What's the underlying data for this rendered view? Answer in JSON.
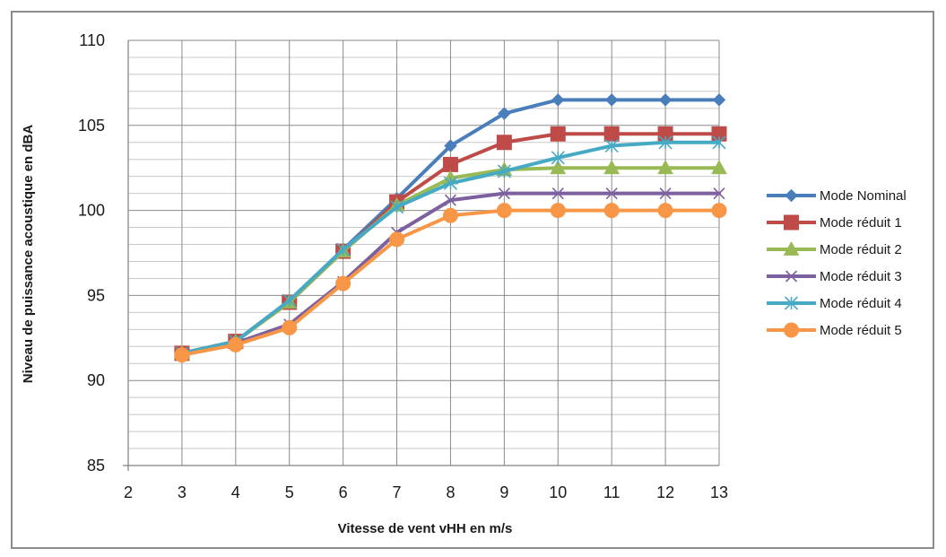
{
  "chart_data": {
    "type": "line",
    "title": "",
    "xlabel": "Vitesse de vent vHH en m/s",
    "ylabel": "Niveau de puissance acoustique en dBA",
    "xlim": [
      2,
      13
    ],
    "ylim": [
      85,
      110
    ],
    "x_ticks": [
      2,
      3,
      4,
      5,
      6,
      7,
      8,
      9,
      10,
      11,
      12,
      13
    ],
    "y_ticks": [
      85,
      90,
      95,
      100,
      105,
      110
    ],
    "grid": true,
    "legend_position": "right",
    "x": [
      3,
      4,
      5,
      6,
      7,
      8,
      9,
      10,
      11,
      12,
      13
    ],
    "series": [
      {
        "name": "Mode Nominal",
        "color": "#4a7ebb",
        "marker": "diamond",
        "values": [
          91.6,
          92.3,
          94.7,
          97.7,
          100.7,
          103.8,
          105.7,
          106.5,
          106.5,
          106.5,
          106.5
        ]
      },
      {
        "name": "Mode réduit 1",
        "color": "#be4b48",
        "marker": "square",
        "values": [
          91.6,
          92.3,
          94.6,
          97.6,
          100.5,
          102.7,
          104.0,
          104.5,
          104.5,
          104.5,
          104.5
        ]
      },
      {
        "name": "Mode réduit 2",
        "color": "#98b954",
        "marker": "triangle",
        "values": [
          91.6,
          92.3,
          94.6,
          97.6,
          100.3,
          101.9,
          102.4,
          102.5,
          102.5,
          102.5,
          102.5
        ]
      },
      {
        "name": "Mode réduit 3",
        "color": "#7d60a0",
        "marker": "x",
        "values": [
          91.6,
          92.2,
          93.3,
          95.8,
          98.7,
          100.6,
          101.0,
          101.0,
          101.0,
          101.0,
          101.0
        ]
      },
      {
        "name": "Mode réduit 4",
        "color": "#46aac5",
        "marker": "star",
        "values": [
          91.6,
          92.3,
          94.7,
          97.7,
          100.2,
          101.6,
          102.3,
          103.1,
          103.8,
          104.0,
          104.0
        ]
      },
      {
        "name": "Mode réduit 5",
        "color": "#f79646",
        "marker": "circle",
        "values": [
          91.5,
          92.1,
          93.1,
          95.7,
          98.3,
          99.7,
          100.0,
          100.0,
          100.0,
          100.0,
          100.0
        ]
      }
    ]
  }
}
